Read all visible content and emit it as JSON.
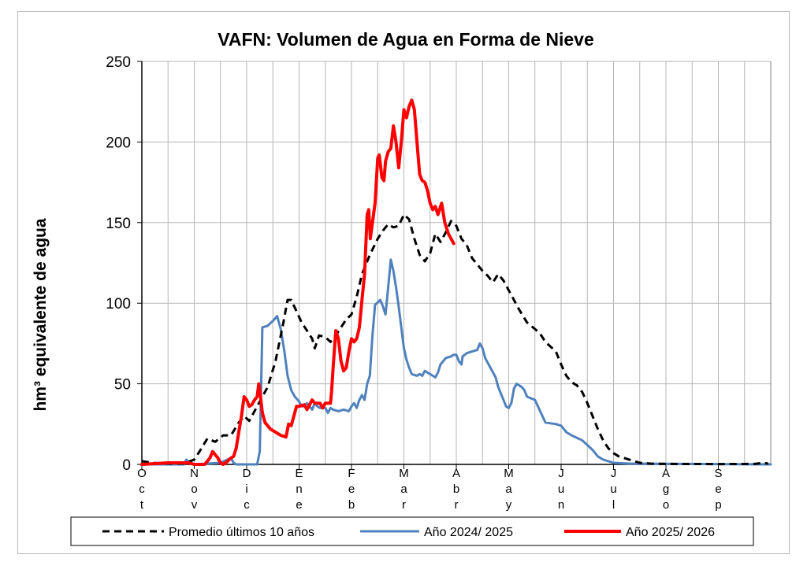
{
  "chart_data": {
    "type": "line",
    "title": "VAFN: Volumen de Agua en Forma de Nieve",
    "ylabel": "hm³ equivalente de agua",
    "ylim": [
      0,
      250
    ],
    "yticks": [
      "0",
      "50",
      "100",
      "150",
      "200",
      "250"
    ],
    "grid": true,
    "legend_position": "bottom",
    "months": [
      {
        "letters": [
          "O",
          "c",
          "t"
        ]
      },
      {
        "letters": [
          "N",
          "o",
          "v"
        ]
      },
      {
        "letters": [
          "D",
          "i",
          "c"
        ]
      },
      {
        "letters": [
          "E",
          "n",
          "e"
        ]
      },
      {
        "letters": [
          "F",
          "e",
          "b"
        ]
      },
      {
        "letters": [
          "M",
          "a",
          "r"
        ]
      },
      {
        "letters": [
          "A",
          "b",
          "r"
        ]
      },
      {
        "letters": [
          "M",
          "a",
          "y"
        ]
      },
      {
        "letters": [
          "J",
          "u",
          "n"
        ]
      },
      {
        "letters": [
          "J",
          "u",
          "l"
        ]
      },
      {
        "letters": [
          "A",
          "g",
          "o"
        ]
      },
      {
        "letters": [
          "S",
          "e",
          "p"
        ]
      }
    ],
    "x_unit": "months since 1 Oct",
    "series": [
      {
        "name": "Promedio últimos 10 años",
        "color": "#000000",
        "style": "dashed",
        "points": [
          [
            0,
            2
          ],
          [
            0.2,
            1
          ],
          [
            0.5,
            0.5
          ],
          [
            0.8,
            0.5
          ],
          [
            1.0,
            3
          ],
          [
            1.1,
            8
          ],
          [
            1.25,
            16
          ],
          [
            1.4,
            14
          ],
          [
            1.55,
            18
          ],
          [
            1.7,
            18
          ],
          [
            1.85,
            26
          ],
          [
            1.95,
            30
          ],
          [
            2.05,
            27
          ],
          [
            2.2,
            36
          ],
          [
            2.4,
            48
          ],
          [
            2.55,
            64
          ],
          [
            2.7,
            88
          ],
          [
            2.78,
            102
          ],
          [
            2.85,
            102
          ],
          [
            2.95,
            95
          ],
          [
            3.05,
            88
          ],
          [
            3.15,
            83
          ],
          [
            3.25,
            78
          ],
          [
            3.3,
            72
          ],
          [
            3.38,
            80
          ],
          [
            3.5,
            79
          ],
          [
            3.6,
            76
          ],
          [
            3.7,
            80
          ],
          [
            3.8,
            85
          ],
          [
            3.9,
            90
          ],
          [
            4.0,
            93
          ],
          [
            4.1,
            104
          ],
          [
            4.2,
            118
          ],
          [
            4.35,
            130
          ],
          [
            4.5,
            140
          ],
          [
            4.6,
            145
          ],
          [
            4.7,
            149
          ],
          [
            4.8,
            147
          ],
          [
            4.9,
            148
          ],
          [
            5.0,
            155
          ],
          [
            5.1,
            152
          ],
          [
            5.2,
            140
          ],
          [
            5.3,
            130
          ],
          [
            5.4,
            126
          ],
          [
            5.5,
            131
          ],
          [
            5.6,
            143
          ],
          [
            5.7,
            138
          ],
          [
            5.8,
            144
          ],
          [
            5.9,
            151
          ],
          [
            6.0,
            148
          ],
          [
            6.1,
            140
          ],
          [
            6.2,
            136
          ],
          [
            6.3,
            128
          ],
          [
            6.4,
            124
          ],
          [
            6.5,
            120
          ],
          [
            6.6,
            117
          ],
          [
            6.7,
            113
          ],
          [
            6.8,
            118
          ],
          [
            6.9,
            114
          ],
          [
            7.0,
            108
          ],
          [
            7.1,
            102
          ],
          [
            7.2,
            96
          ],
          [
            7.35,
            88
          ],
          [
            7.5,
            84
          ],
          [
            7.6,
            81
          ],
          [
            7.7,
            76
          ],
          [
            7.8,
            73
          ],
          [
            7.9,
            70
          ],
          [
            8.0,
            62
          ],
          [
            8.1,
            55
          ],
          [
            8.2,
            51
          ],
          [
            8.3,
            49
          ],
          [
            8.4,
            45
          ],
          [
            8.5,
            38
          ],
          [
            8.6,
            30
          ],
          [
            8.7,
            22
          ],
          [
            8.8,
            15
          ],
          [
            8.9,
            10
          ],
          [
            9.0,
            7
          ],
          [
            9.1,
            5
          ],
          [
            9.2,
            4
          ],
          [
            9.3,
            3
          ],
          [
            9.4,
            2
          ],
          [
            9.5,
            1
          ],
          [
            9.7,
            0.5
          ],
          [
            10.0,
            0.3
          ],
          [
            11.0,
            0.2
          ],
          [
            11.7,
            0.3
          ],
          [
            11.85,
            1
          ],
          [
            11.95,
            0.5
          ]
        ]
      },
      {
        "name": "Año  2024/ 2025",
        "color": "#4f81bd",
        "style": "solid",
        "points": [
          [
            0,
            0
          ],
          [
            0.8,
            0
          ],
          [
            0.85,
            3
          ],
          [
            0.9,
            1
          ],
          [
            1.0,
            0
          ],
          [
            1.5,
            1
          ],
          [
            1.7,
            4
          ],
          [
            1.75,
            1
          ],
          [
            1.8,
            0
          ],
          [
            2.2,
            0
          ],
          [
            2.25,
            8
          ],
          [
            2.27,
            40
          ],
          [
            2.3,
            85
          ],
          [
            2.4,
            86
          ],
          [
            2.5,
            89
          ],
          [
            2.58,
            92
          ],
          [
            2.65,
            84
          ],
          [
            2.72,
            70
          ],
          [
            2.78,
            55
          ],
          [
            2.85,
            46
          ],
          [
            2.92,
            42
          ],
          [
            3.0,
            39
          ],
          [
            3.05,
            36
          ],
          [
            3.1,
            36
          ],
          [
            3.15,
            38
          ],
          [
            3.2,
            36
          ],
          [
            3.25,
            34
          ],
          [
            3.3,
            38
          ],
          [
            3.35,
            36
          ],
          [
            3.4,
            35
          ],
          [
            3.5,
            35
          ],
          [
            3.55,
            32
          ],
          [
            3.6,
            35
          ],
          [
            3.65,
            34
          ],
          [
            3.75,
            33
          ],
          [
            3.85,
            34
          ],
          [
            3.95,
            33
          ],
          [
            4.0,
            36
          ],
          [
            4.05,
            38
          ],
          [
            4.1,
            35
          ],
          [
            4.15,
            40
          ],
          [
            4.2,
            43
          ],
          [
            4.25,
            40
          ],
          [
            4.3,
            50
          ],
          [
            4.35,
            55
          ],
          [
            4.4,
            80
          ],
          [
            4.45,
            99
          ],
          [
            4.55,
            102
          ],
          [
            4.6,
            98
          ],
          [
            4.65,
            93
          ],
          [
            4.7,
            110
          ],
          [
            4.75,
            127
          ],
          [
            4.8,
            120
          ],
          [
            4.85,
            110
          ],
          [
            4.9,
            98
          ],
          [
            4.95,
            85
          ],
          [
            5.0,
            72
          ],
          [
            5.05,
            65
          ],
          [
            5.1,
            60
          ],
          [
            5.15,
            56
          ],
          [
            5.25,
            55
          ],
          [
            5.3,
            56
          ],
          [
            5.35,
            55
          ],
          [
            5.4,
            58
          ],
          [
            5.5,
            56
          ],
          [
            5.6,
            54
          ],
          [
            5.65,
            57
          ],
          [
            5.7,
            62
          ],
          [
            5.8,
            66
          ],
          [
            5.9,
            67
          ],
          [
            5.95,
            68
          ],
          [
            6.0,
            68
          ],
          [
            6.05,
            64
          ],
          [
            6.1,
            62
          ],
          [
            6.12,
            67
          ],
          [
            6.2,
            69
          ],
          [
            6.3,
            70
          ],
          [
            6.4,
            71
          ],
          [
            6.45,
            75
          ],
          [
            6.5,
            72
          ],
          [
            6.55,
            66
          ],
          [
            6.65,
            60
          ],
          [
            6.75,
            54
          ],
          [
            6.8,
            48
          ],
          [
            6.85,
            44
          ],
          [
            6.9,
            40
          ],
          [
            6.95,
            36
          ],
          [
            7.0,
            35
          ],
          [
            7.05,
            38
          ],
          [
            7.1,
            47
          ],
          [
            7.15,
            50
          ],
          [
            7.25,
            48
          ],
          [
            7.3,
            46
          ],
          [
            7.35,
            42
          ],
          [
            7.5,
            40
          ],
          [
            7.6,
            33
          ],
          [
            7.7,
            26
          ],
          [
            7.9,
            25
          ],
          [
            8.0,
            24
          ],
          [
            8.1,
            20
          ],
          [
            8.2,
            18
          ],
          [
            8.4,
            15
          ],
          [
            8.5,
            12
          ],
          [
            8.6,
            9
          ],
          [
            8.7,
            5
          ],
          [
            8.8,
            3
          ],
          [
            8.9,
            2
          ],
          [
            9.0,
            1
          ],
          [
            9.3,
            0.5
          ],
          [
            12.0,
            0
          ]
        ]
      },
      {
        "name": "Año  2025/ 2026",
        "color": "#ff0000",
        "style": "solid",
        "points": [
          [
            0,
            0
          ],
          [
            0.5,
            1
          ],
          [
            0.9,
            1
          ],
          [
            1.0,
            0
          ],
          [
            1.2,
            0
          ],
          [
            1.3,
            4
          ],
          [
            1.35,
            8
          ],
          [
            1.45,
            4
          ],
          [
            1.5,
            1
          ],
          [
            1.55,
            0
          ],
          [
            1.6,
            1
          ],
          [
            1.7,
            4
          ],
          [
            1.75,
            5
          ],
          [
            1.8,
            10
          ],
          [
            1.85,
            20
          ],
          [
            1.9,
            30
          ],
          [
            1.95,
            42
          ],
          [
            2.0,
            40
          ],
          [
            2.05,
            36
          ],
          [
            2.1,
            37
          ],
          [
            2.15,
            40
          ],
          [
            2.2,
            42
          ],
          [
            2.23,
            50
          ],
          [
            2.25,
            46
          ],
          [
            2.3,
            32
          ],
          [
            2.35,
            26
          ],
          [
            2.45,
            22
          ],
          [
            2.55,
            20
          ],
          [
            2.65,
            18
          ],
          [
            2.75,
            17
          ],
          [
            2.8,
            25
          ],
          [
            2.85,
            24
          ],
          [
            2.9,
            30
          ],
          [
            2.95,
            36
          ],
          [
            3.0,
            36
          ],
          [
            3.1,
            37
          ],
          [
            3.15,
            34
          ],
          [
            3.2,
            37
          ],
          [
            3.25,
            40
          ],
          [
            3.3,
            38
          ],
          [
            3.4,
            38
          ],
          [
            3.45,
            35
          ],
          [
            3.5,
            38
          ],
          [
            3.6,
            38
          ],
          [
            3.62,
            45
          ],
          [
            3.65,
            60
          ],
          [
            3.7,
            83
          ],
          [
            3.75,
            78
          ],
          [
            3.8,
            64
          ],
          [
            3.85,
            58
          ],
          [
            3.9,
            60
          ],
          [
            3.95,
            70
          ],
          [
            4.0,
            78
          ],
          [
            4.05,
            76
          ],
          [
            4.1,
            78
          ],
          [
            4.15,
            85
          ],
          [
            4.2,
            102
          ],
          [
            4.25,
            118
          ],
          [
            4.3,
            155
          ],
          [
            4.33,
            158
          ],
          [
            4.36,
            140
          ],
          [
            4.4,
            150
          ],
          [
            4.45,
            162
          ],
          [
            4.5,
            190
          ],
          [
            4.53,
            192
          ],
          [
            4.58,
            178
          ],
          [
            4.62,
            176
          ],
          [
            4.65,
            188
          ],
          [
            4.7,
            194
          ],
          [
            4.75,
            196
          ],
          [
            4.8,
            210
          ],
          [
            4.85,
            200
          ],
          [
            4.9,
            184
          ],
          [
            4.95,
            200
          ],
          [
            5.0,
            220
          ],
          [
            5.05,
            215
          ],
          [
            5.1,
            222
          ],
          [
            5.15,
            226
          ],
          [
            5.2,
            220
          ],
          [
            5.25,
            200
          ],
          [
            5.3,
            180
          ],
          [
            5.35,
            176
          ],
          [
            5.4,
            175
          ],
          [
            5.45,
            170
          ],
          [
            5.5,
            162
          ],
          [
            5.55,
            158
          ],
          [
            5.6,
            160
          ],
          [
            5.65,
            155
          ],
          [
            5.7,
            160
          ],
          [
            5.72,
            162
          ],
          [
            5.78,
            150
          ],
          [
            5.85,
            143
          ],
          [
            5.9,
            140
          ],
          [
            5.95,
            137
          ]
        ]
      }
    ]
  }
}
